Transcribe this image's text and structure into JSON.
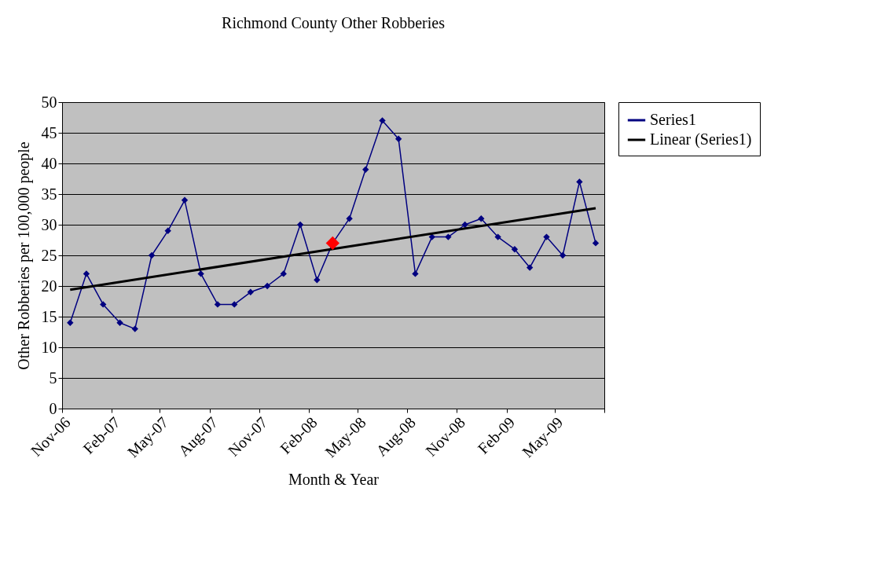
{
  "chart_data": {
    "type": "line",
    "title": "Richmond County Other Robberies",
    "xlabel": "Month & Year",
    "ylabel": "Other Robberies per 100,000 people",
    "x": [
      "2006-11-16",
      "2006-12-16",
      "2007-01-16",
      "2007-02-16",
      "2007-03-16",
      "2007-04-16",
      "2007-05-16",
      "2007-06-16",
      "2007-07-16",
      "2007-08-16",
      "2007-09-16",
      "2007-10-16",
      "2007-11-16",
      "2007-12-16",
      "2008-01-16",
      "2008-02-16",
      "2008-03-16",
      "2008-04-16",
      "2008-05-16",
      "2008-06-16",
      "2008-07-16",
      "2008-08-16",
      "2008-09-16",
      "2008-10-16",
      "2008-11-16",
      "2008-12-16",
      "2009-01-16",
      "2009-02-16",
      "2009-03-16",
      "2009-04-16",
      "2009-05-16",
      "2009-06-16",
      "2009-07-16"
    ],
    "series": [
      {
        "name": "Series1",
        "color": "#000080",
        "marker": "diamond",
        "values": [
          14,
          22,
          17,
          14,
          13,
          25,
          29,
          34,
          22,
          17,
          17,
          19,
          20,
          22,
          30,
          21,
          27,
          31,
          39,
          47,
          44,
          22,
          28,
          28,
          30,
          31,
          28,
          26,
          23,
          28,
          25,
          37,
          27
        ]
      },
      {
        "type": "line",
        "name": "Linear (Series1)",
        "color": "#000000",
        "marker": "none",
        "x": [
          "2006-11-16",
          "2009-07-16"
        ],
        "values": [
          19.4,
          32.7
        ]
      },
      {
        "type": "scatter",
        "color": "#ff0000",
        "marker": "diamond",
        "x": [
          "2008-03-16"
        ],
        "values": [
          27
        ]
      }
    ],
    "xlim": [
      "2006-11-01",
      "2009-08-01"
    ],
    "xticks": [
      {
        "value": "2006-11-01",
        "label": "Nov-06"
      },
      {
        "value": "2007-02-01",
        "label": "Feb-07"
      },
      {
        "value": "2007-05-01",
        "label": "May-07"
      },
      {
        "value": "2007-08-01",
        "label": "Aug-07"
      },
      {
        "value": "2007-11-01",
        "label": "Nov-07"
      },
      {
        "value": "2008-02-01",
        "label": "Feb-08"
      },
      {
        "value": "2008-05-01",
        "label": "May-08"
      },
      {
        "value": "2008-08-01",
        "label": "Aug-08"
      },
      {
        "value": "2008-11-01",
        "label": "Nov-08"
      },
      {
        "value": "2009-02-01",
        "label": "Feb-09"
      },
      {
        "value": "2009-05-01",
        "label": "May-09"
      },
      {
        "value": "2009-08-01",
        "label": null
      }
    ],
    "ylim": [
      0,
      50
    ],
    "yticks": [
      0,
      5,
      10,
      15,
      20,
      25,
      30,
      35,
      40,
      45,
      50
    ],
    "grid": "y",
    "legend": "right"
  }
}
